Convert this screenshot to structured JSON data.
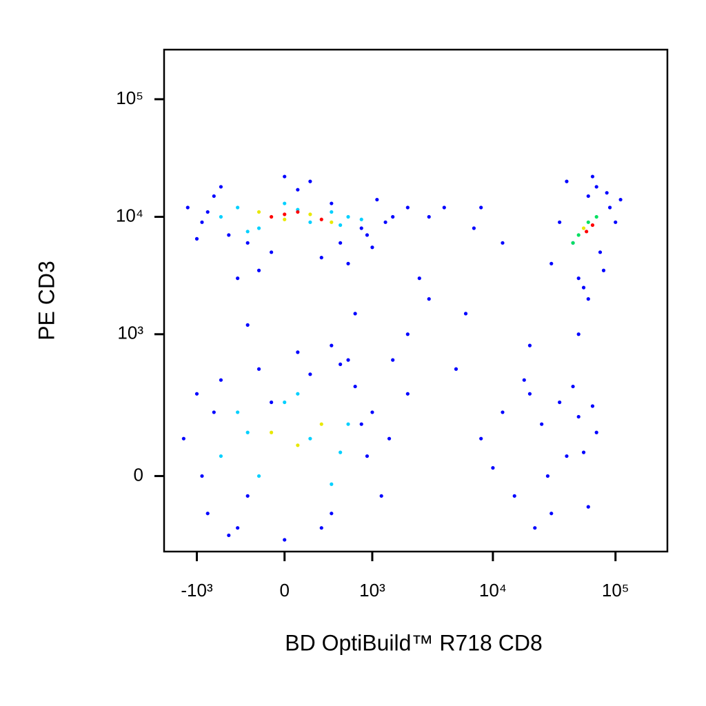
{
  "chart_data": {
    "type": "scatter",
    "xlabel": "BD OptiBuild™ R718 CD8",
    "ylabel": "PE CD3",
    "xscale": "biexponential",
    "yscale": "biexponential",
    "xlim": [
      -1900,
      265000
    ],
    "ylim": [
      -260,
      264000
    ],
    "xticks": [
      {
        "value": -1000,
        "label": "-10³"
      },
      0,
      {
        "value": 1000,
        "label": "10³"
      },
      {
        "value": 10000,
        "label": "10⁴"
      },
      {
        "value": 100000,
        "label": "10⁵"
      }
    ],
    "yticks": [
      0,
      {
        "value": 1000,
        "label": "10³"
      },
      {
        "value": 10000,
        "label": "10⁴"
      },
      {
        "value": 100000,
        "label": "10⁵"
      }
    ],
    "series": [
      {
        "color": "#0000ff",
        "x": [
          -1200,
          -900,
          -700,
          -500,
          -300,
          -100,
          100,
          300,
          500,
          800,
          1100,
          1500,
          2000,
          -1000,
          -600,
          -200,
          200,
          600,
          1000,
          -800,
          -400,
          0,
          400,
          900,
          1300
        ],
        "y": [
          12000,
          9000,
          15000,
          7000,
          6000,
          5000,
          17000,
          4500,
          6000,
          8000,
          14000,
          10000,
          12000,
          6500,
          18000,
          3500,
          20000,
          4000,
          5500,
          11000,
          3000,
          22000,
          13000,
          7000,
          9000
        ]
      },
      {
        "color": "#0000ff",
        "x": [
          -1300,
          -1000,
          -800,
          -600,
          -400,
          -200,
          0,
          200,
          400,
          700,
          1000,
          1400,
          2000,
          -900,
          -500,
          -100,
          300,
          600,
          900,
          1200,
          -700,
          -300,
          100,
          500,
          800
        ],
        "y": [
          100,
          300,
          -100,
          400,
          -150,
          500,
          -200,
          450,
          -100,
          350,
          200,
          100,
          300,
          0,
          -180,
          250,
          -150,
          600,
          50,
          -50,
          200,
          -50,
          700,
          550,
          150
        ]
      },
      {
        "color": "#0000ff",
        "x": [
          30000,
          40000,
          50000,
          60000,
          70000,
          80000,
          90000,
          110000,
          45000,
          55000,
          65000,
          75000,
          35000,
          100000,
          85000
        ],
        "y": [
          4000,
          20000,
          3000,
          15000,
          18000,
          3500,
          12000,
          14000,
          6000,
          2500,
          22000,
          5000,
          9000,
          9000,
          16000
        ]
      },
      {
        "color": "#0000ff",
        "x": [
          8000,
          12000,
          15000,
          20000,
          25000,
          30000,
          35000,
          40000,
          50000,
          60000,
          70000,
          18000,
          22000,
          28000,
          45000,
          55000,
          10000,
          65000
        ],
        "y": [
          100,
          200,
          -50,
          300,
          150,
          -100,
          250,
          50,
          180,
          -80,
          120,
          400,
          -150,
          0,
          350,
          60,
          20,
          230
        ]
      },
      {
        "color": "#0000ff",
        "x": [
          2000,
          3000,
          5000,
          7000,
          4000,
          1500,
          2500,
          6000,
          12000,
          20000,
          50000,
          60000,
          3000,
          8000,
          700,
          400,
          -300
        ],
        "y": [
          1000,
          2000,
          500,
          8000,
          12000,
          600,
          3000,
          1500,
          6000,
          800,
          1000,
          2000,
          10000,
          12000,
          1500,
          800,
          1200
        ]
      },
      {
        "color": "#00d0ff",
        "x": [
          -600,
          -400,
          -200,
          0,
          200,
          400,
          600,
          -300,
          100,
          500,
          800
        ],
        "y": [
          10000,
          12000,
          8000,
          13000,
          9000,
          11000,
          10000,
          7500,
          11500,
          8500,
          9500
        ]
      },
      {
        "color": "#00d0ff",
        "x": [
          -600,
          -400,
          -200,
          0,
          200,
          400,
          600,
          -300,
          100,
          500
        ],
        "y": [
          50,
          200,
          0,
          250,
          100,
          -20,
          150,
          120,
          300,
          60
        ]
      },
      {
        "color": "#00e060",
        "x": [
          50000,
          60000,
          45000,
          70000
        ],
        "y": [
          7000,
          9000,
          6000,
          10000
        ]
      },
      {
        "color": "#e8e800",
        "x": [
          -200,
          0,
          200,
          400,
          -100,
          100,
          300,
          55000
        ],
        "y": [
          11000,
          9500,
          10500,
          9000,
          120,
          80,
          150,
          8000
        ]
      },
      {
        "color": "#ff0000",
        "x": [
          -100,
          100,
          300,
          0,
          58000,
          65000
        ],
        "y": [
          10000,
          11000,
          9500,
          10500,
          7500,
          8500
        ]
      }
    ]
  }
}
